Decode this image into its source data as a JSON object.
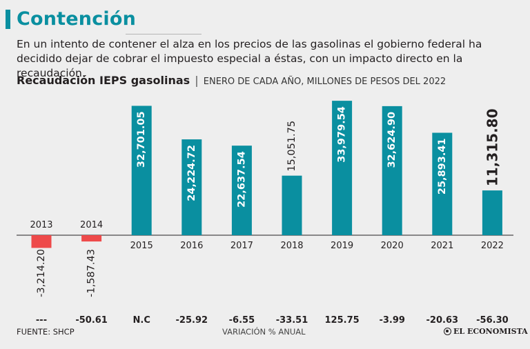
{
  "header": {
    "title": "Contención",
    "description": "En un intento de contener el alza en los precios de las gasolinas el gobierno federal ha decidido dejar de cobrar el impuesto especial a éstas, con un impacto directo en la recaudación."
  },
  "chart_header": {
    "title": "Recaudación IEPS gasolinas",
    "separator": "|",
    "subtitle": "ENERO DE CADA AÑO, MILLONES DE PESOS DEL 2022"
  },
  "chart_data": {
    "type": "bar",
    "title": "Recaudación IEPS gasolinas",
    "subtitle": "ENERO DE CADA AÑO, MILLONES DE PESOS DEL 2022",
    "categories": [
      "2013",
      "2014",
      "2015",
      "2016",
      "2017",
      "2018",
      "2019",
      "2020",
      "2021",
      "2022"
    ],
    "values": [
      -3214.2,
      -1587.43,
      32701.05,
      24224.72,
      22637.54,
      15051.75,
      33979.54,
      32624.9,
      25893.41,
      11315.8
    ],
    "value_labels": [
      "-3,214.20",
      "-1,587.43",
      "32,701.05",
      "24,224.72",
      "22,637.54",
      "15,051.75",
      "33,979.54",
      "32,624.90",
      "25,893.41",
      "11,315.80"
    ],
    "variation_labels": [
      "---",
      "-50.61",
      "N.C",
      "-25.92",
      "-6.55",
      "-33.51",
      "125.75",
      "-3.99",
      "-20.63",
      "-56.30"
    ],
    "variation_axis_label": "VARIACIÓN % ANUAL",
    "highlight_category": "2022",
    "ylim": [
      -3300,
      34500
    ],
    "colors": {
      "positive": "#0a8fa0",
      "negative": "#ee4a4a",
      "text": "#231f20",
      "axis": "#231f20"
    }
  },
  "footer": {
    "source": "FUENTE: SHCP",
    "logo_text": "EL ECONOMISTA"
  }
}
